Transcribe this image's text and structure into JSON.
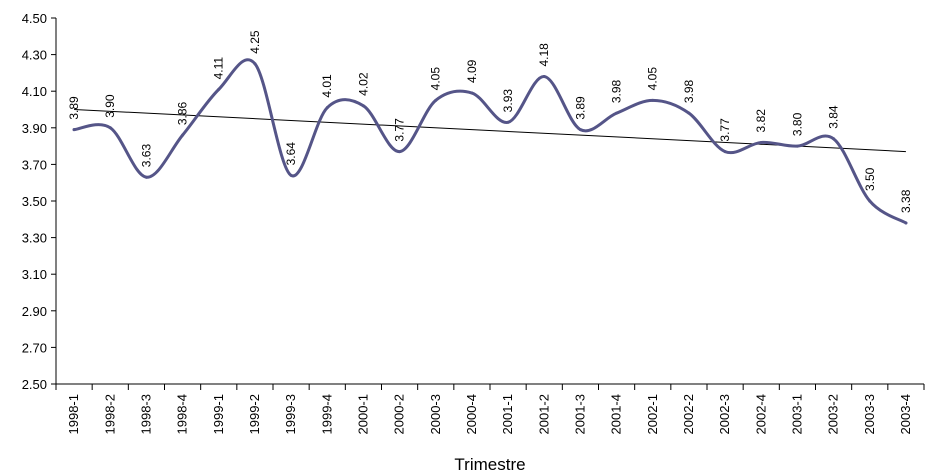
{
  "chart_data": {
    "type": "line",
    "title": "",
    "xlabel": "Trimestre",
    "ylabel": "",
    "ylim": [
      2.5,
      4.5
    ],
    "yticks": [
      "2.50",
      "2.70",
      "2.90",
      "3.10",
      "3.30",
      "3.50",
      "3.70",
      "3.90",
      "4.10",
      "4.30",
      "4.50"
    ],
    "categories": [
      "1998-1",
      "1998-2",
      "1998-3",
      "1998-4",
      "1999-1",
      "1999-2",
      "1999-3",
      "1999-4",
      "2000-1",
      "2000-2",
      "2000-3",
      "2000-4",
      "2001-1",
      "2001-2",
      "2001-3",
      "2001-4",
      "2002-1",
      "2002-2",
      "2002-3",
      "2002-4",
      "2003-1",
      "2003-2",
      "2003-3",
      "2003-4"
    ],
    "series": [
      {
        "values": [
          3.89,
          3.9,
          3.63,
          3.86,
          4.11,
          4.25,
          3.64,
          4.01,
          4.02,
          3.77,
          4.05,
          4.09,
          3.93,
          4.18,
          3.89,
          3.98,
          4.05,
          3.98,
          3.77,
          3.82,
          3.8,
          3.84,
          3.5,
          3.38
        ],
        "data_labels": [
          "3.89",
          "3.90",
          "3.63",
          "3.86",
          "4.11",
          "4.25",
          "3.64",
          "4.01",
          "4.02",
          "3.77",
          "4.05",
          "4.09",
          "3.93",
          "4.18",
          "3.89",
          "3.98",
          "4.05",
          "3.98",
          "3.77",
          "3.82",
          "3.80",
          "3.84",
          "3.50",
          "3.38"
        ]
      }
    ],
    "trendline": {
      "type": "linear",
      "start": 4.0,
      "end": 3.77
    },
    "grid": false,
    "legend": "none",
    "colors": {
      "series": "#555588",
      "trend": "#000000",
      "axis": "#000000"
    }
  }
}
